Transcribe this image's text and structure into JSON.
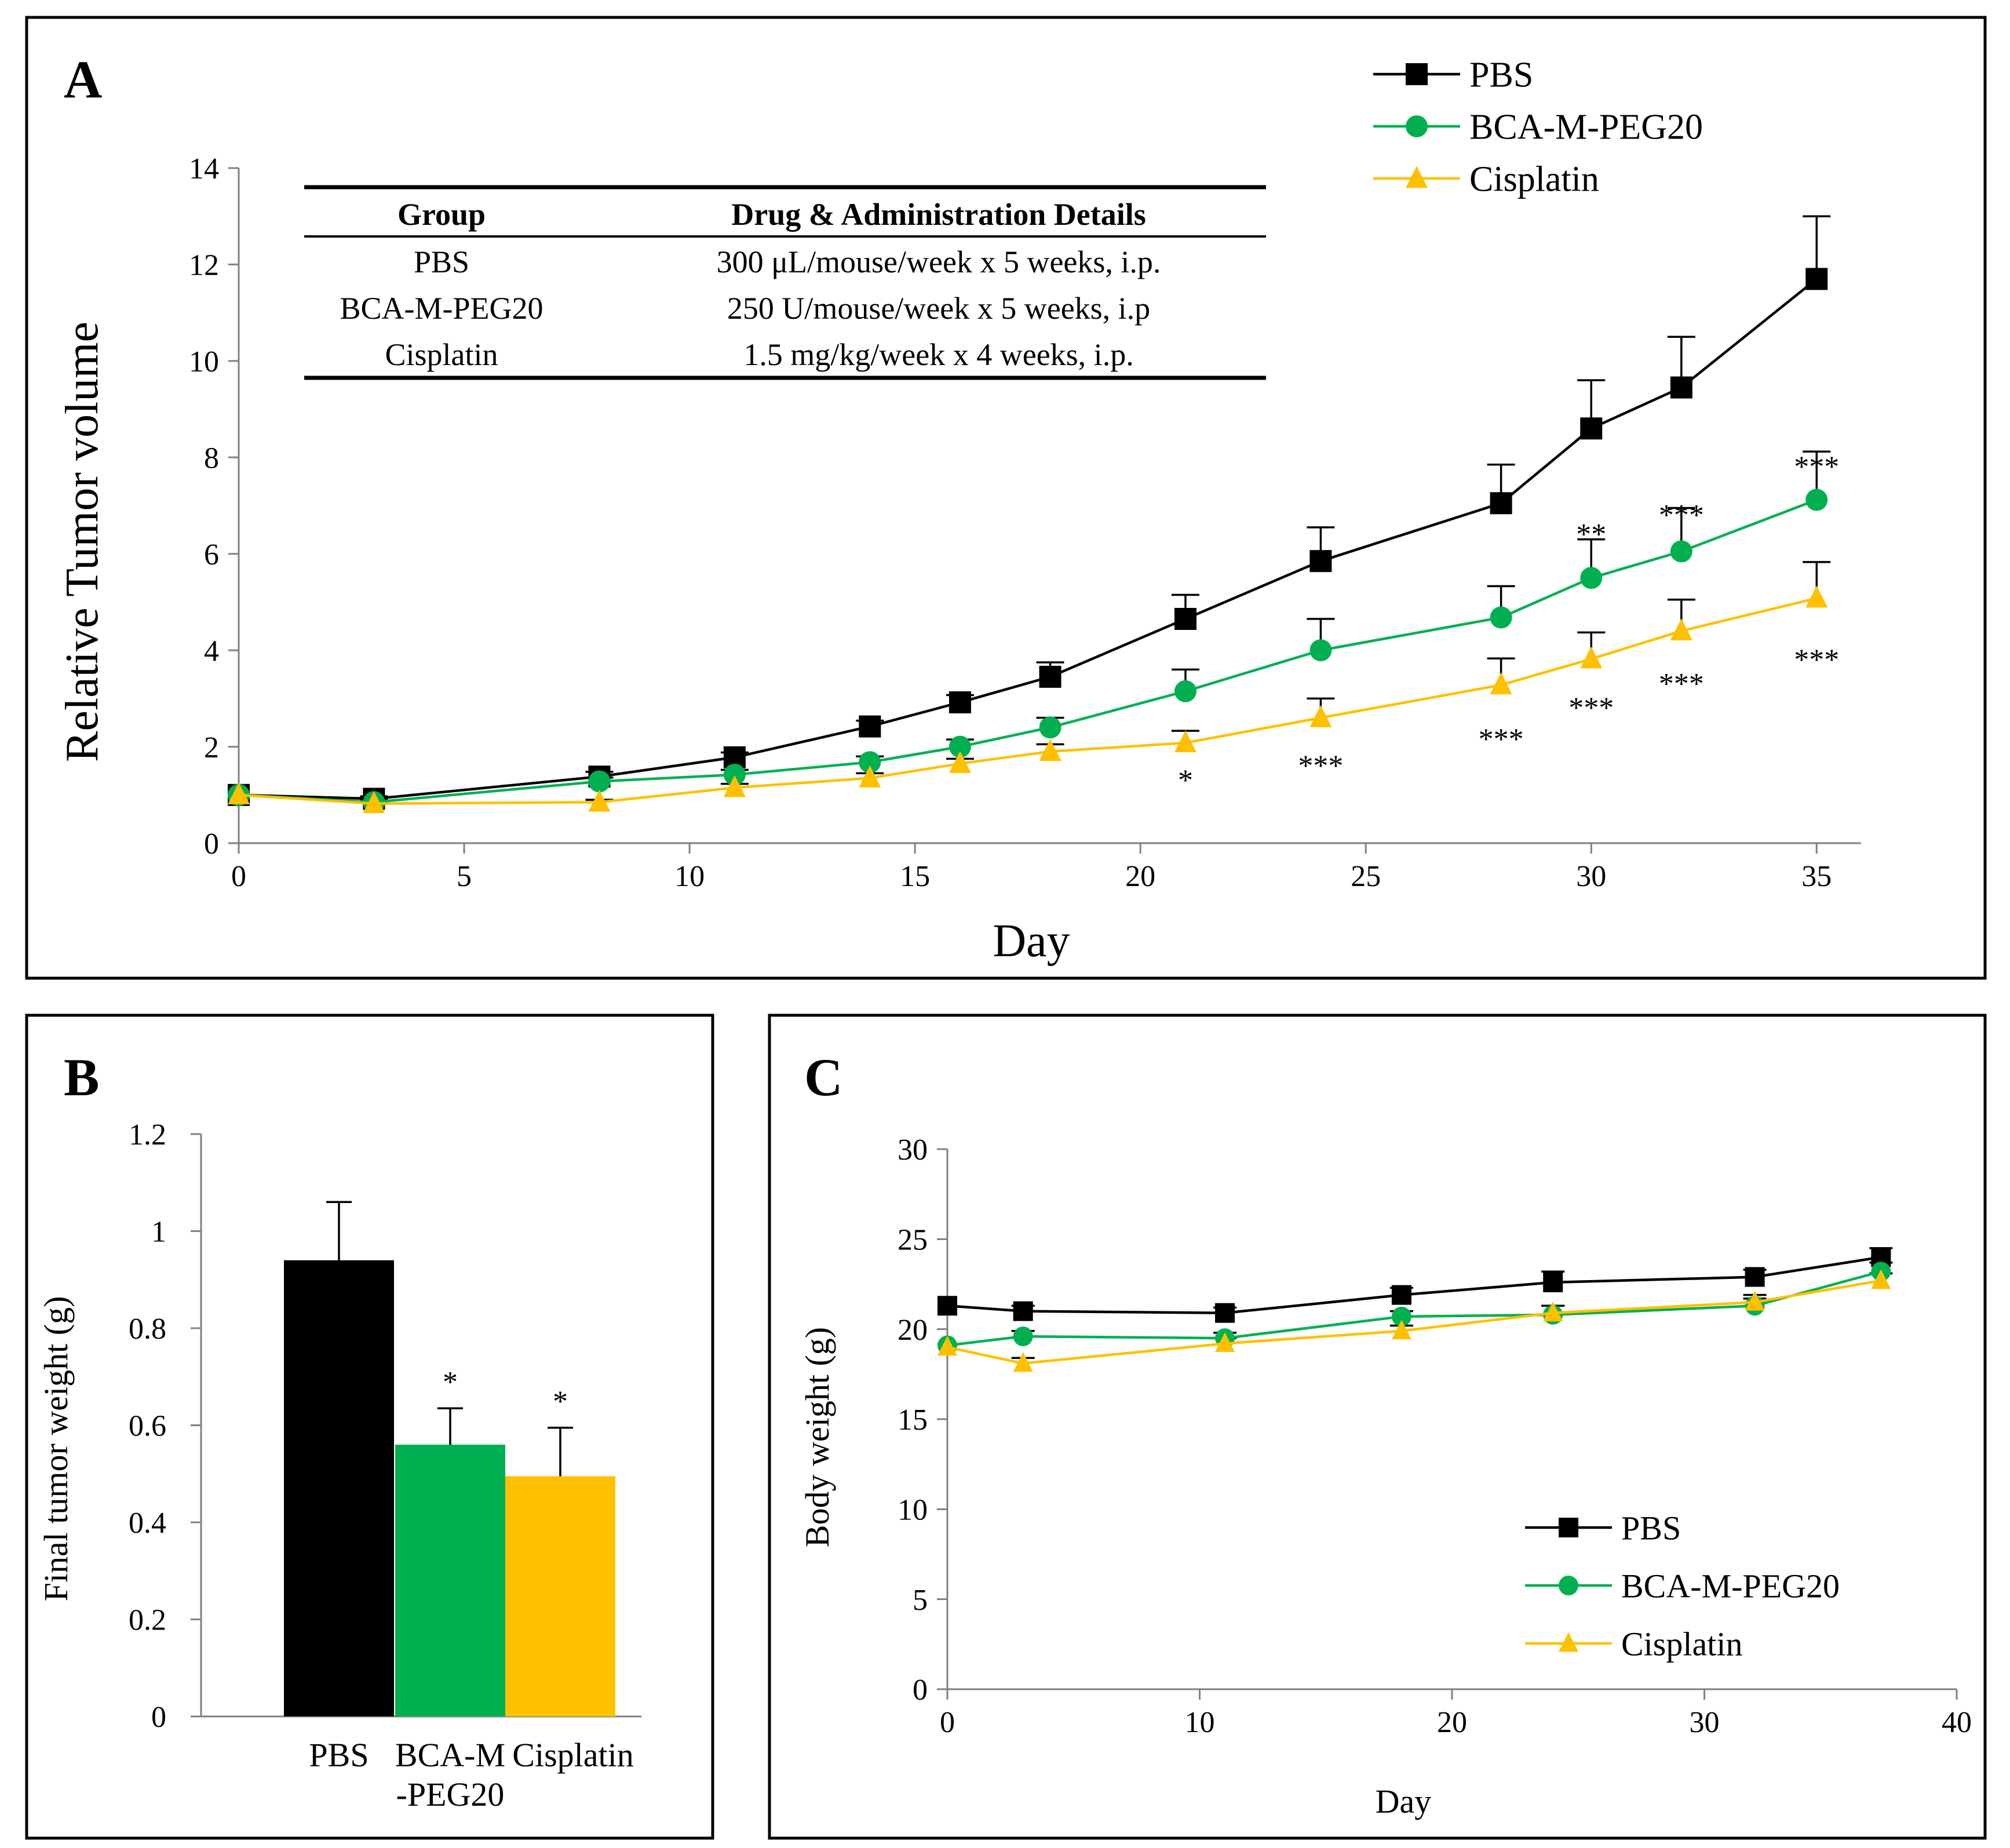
{
  "colors": {
    "pbs": "#000000",
    "bca": "#00b050",
    "cis": "#ffc000",
    "axis": "#808080"
  },
  "panel_a": {
    "letter": "A",
    "table": {
      "headers": [
        "Group",
        "Drug & Administration Details"
      ],
      "rows": [
        [
          "PBS",
          "300 μL/mouse/week x 5 weeks, i.p."
        ],
        [
          "BCA-M-PEG20",
          "250 U/mouse/week x 5 weeks, i.p"
        ],
        [
          "Cisplatin",
          "1.5 mg/kg/week x 4 weeks, i.p."
        ]
      ]
    }
  },
  "panel_b": {
    "letter": "B"
  },
  "panel_c": {
    "letter": "C"
  },
  "chart_data": [
    {
      "type": "line",
      "panel": "A",
      "xlabel": "Day",
      "ylabel": "Relative Tumor volume",
      "xlim": [
        0,
        36
      ],
      "ylim": [
        0,
        14
      ],
      "xticks": [
        0,
        5,
        10,
        15,
        20,
        25,
        30,
        35
      ],
      "yticks": [
        0,
        2,
        4,
        6,
        8,
        10,
        12,
        14
      ],
      "legend_position": "top-right",
      "x": [
        0,
        3,
        8,
        11,
        14,
        16,
        18,
        21,
        24,
        28,
        30,
        32,
        35
      ],
      "series": [
        {
          "name": "PBS",
          "key": "pbs",
          "marker": "square",
          "values": [
            1.0,
            0.92,
            1.38,
            1.78,
            2.42,
            2.92,
            3.45,
            4.65,
            5.85,
            7.05,
            8.6,
            9.45,
            11.7
          ],
          "errors": [
            0.05,
            0.05,
            0.1,
            0.1,
            0.12,
            0.15,
            0.3,
            0.5,
            0.7,
            0.8,
            1.0,
            1.05,
            1.3
          ]
        },
        {
          "name": "BCA-M-PEG20",
          "key": "bca",
          "marker": "circle",
          "values": [
            1.0,
            0.85,
            1.28,
            1.42,
            1.68,
            2.0,
            2.4,
            3.15,
            4.0,
            4.68,
            5.5,
            6.05,
            7.12
          ],
          "errors": [
            0.05,
            0.05,
            0.08,
            0.1,
            0.12,
            0.15,
            0.2,
            0.45,
            0.65,
            0.65,
            0.8,
            0.9,
            1.0
          ]
        },
        {
          "name": "Cisplatin",
          "key": "cis",
          "marker": "triangle",
          "values": [
            1.0,
            0.82,
            0.85,
            1.15,
            1.35,
            1.65,
            1.9,
            2.08,
            2.6,
            3.28,
            3.82,
            4.4,
            5.08
          ],
          "errors": [
            0.05,
            0.05,
            0.05,
            0.08,
            0.1,
            0.1,
            0.15,
            0.25,
            0.4,
            0.55,
            0.55,
            0.65,
            0.75
          ]
        }
      ],
      "annotations": [
        {
          "text": "*",
          "x": 21,
          "y": 1.1
        },
        {
          "text": "***",
          "x": 24,
          "y": 1.4
        },
        {
          "text": "***",
          "x": 28,
          "y": 1.95
        },
        {
          "text": "***",
          "x": 30,
          "y": 2.6
        },
        {
          "text": "***",
          "x": 32,
          "y": 3.1
        },
        {
          "text": "***",
          "x": 35,
          "y": 3.6
        },
        {
          "text": "**",
          "x": 30,
          "y": 6.2
        },
        {
          "text": "***",
          "x": 32,
          "y": 6.6
        },
        {
          "text": "***",
          "x": 35,
          "y": 7.6
        }
      ]
    },
    {
      "type": "bar",
      "panel": "B",
      "ylabel": "Final tumor weight (g)",
      "ylim": [
        0,
        1.2
      ],
      "yticks": [
        "0",
        "0.2",
        "0.4",
        "0.6",
        "0.8",
        "1",
        "1.2"
      ],
      "categories": [
        "PBS",
        "BCA-M\n-PEG20",
        "Cisplatin"
      ],
      "values": [
        0.94,
        0.56,
        0.495
      ],
      "errors": [
        0.12,
        0.075,
        0.1
      ],
      "keys": [
        "pbs",
        "bca",
        "cis"
      ],
      "annotations": [
        "",
        "*",
        "*"
      ]
    },
    {
      "type": "line",
      "panel": "C",
      "xlabel": "Day",
      "ylabel": "Body weight (g)",
      "xlim": [
        0,
        40
      ],
      "ylim": [
        0,
        30
      ],
      "xticks": [
        0,
        10,
        20,
        30,
        40
      ],
      "yticks": [
        0,
        5,
        10,
        15,
        20,
        25,
        30
      ],
      "legend_position": "bottom-right",
      "x": [
        0,
        3,
        11,
        18,
        24,
        32,
        37
      ],
      "series": [
        {
          "name": "PBS",
          "key": "pbs",
          "marker": "square",
          "values": [
            21.3,
            21.0,
            20.9,
            21.9,
            22.6,
            22.9,
            24.0
          ],
          "errors": [
            0.3,
            0.3,
            0.3,
            0.4,
            0.6,
            0.4,
            0.5
          ]
        },
        {
          "name": "BCA-M-PEG20",
          "key": "bca",
          "marker": "circle",
          "values": [
            19.1,
            19.6,
            19.5,
            20.7,
            20.8,
            21.3,
            23.2
          ],
          "errors": [
            0.3,
            0.3,
            0.3,
            0.3,
            0.5,
            0.4,
            0.5
          ]
        },
        {
          "name": "Cisplatin",
          "key": "cis",
          "marker": "triangle",
          "values": [
            19.0,
            18.1,
            19.2,
            19.9,
            20.9,
            21.5,
            22.7
          ],
          "errors": [
            0.3,
            0.3,
            0.3,
            0.3,
            0.4,
            0.4,
            0.4
          ]
        }
      ]
    }
  ]
}
